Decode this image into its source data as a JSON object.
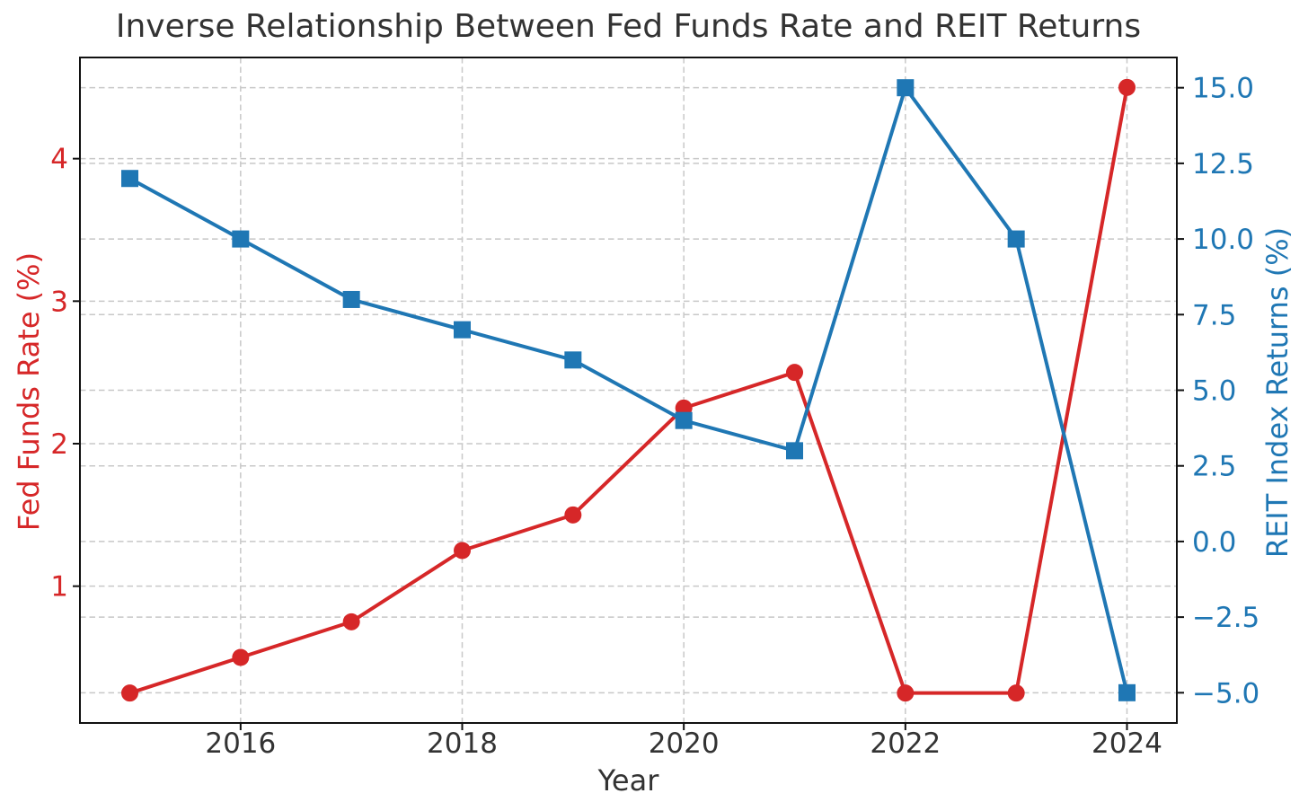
{
  "chart_data": {
    "type": "line",
    "title": "Inverse Relationship Between Fed Funds Rate and REIT Returns",
    "xlabel": "Year",
    "ylabel_left": "Fed Funds Rate (%)",
    "ylabel_right": "REIT Index Returns (%)",
    "x": [
      2015,
      2016,
      2017,
      2018,
      2019,
      2020,
      2021,
      2022,
      2023,
      2024
    ],
    "series": [
      {
        "name": "Fed Funds Rate (%)",
        "axis": "left",
        "color": "#d62728",
        "marker": "circle",
        "values": [
          0.25,
          0.5,
          0.75,
          1.25,
          1.5,
          2.25,
          2.5,
          0.25,
          0.25,
          4.5
        ]
      },
      {
        "name": "REIT Index Returns (%)",
        "axis": "right",
        "color": "#1f77b4",
        "marker": "square",
        "values": [
          12.0,
          10.0,
          8.0,
          7.0,
          6.0,
          4.0,
          3.0,
          15.0,
          10.0,
          -5.0
        ]
      }
    ],
    "xlim": [
      2014.55,
      2024.45
    ],
    "ylim_left": [
      0.04,
      4.71
    ],
    "ylim_right": [
      -6,
      16
    ],
    "x_ticks": [
      2016,
      2018,
      2020,
      2022,
      2024
    ],
    "x_tick_labels": [
      "2016",
      "2018",
      "2020",
      "2022",
      "2024"
    ],
    "left_ticks": [
      1,
      2,
      3,
      4
    ],
    "left_tick_labels": [
      "1",
      "2",
      "3",
      "4"
    ],
    "right_ticks": [
      -5,
      -2.5,
      0,
      2.5,
      5,
      7.5,
      10,
      12.5,
      15
    ],
    "right_tick_labels": [
      "−5.0",
      "−2.5",
      "0.0",
      "2.5",
      "5.0",
      "7.5",
      "10.0",
      "12.5",
      "15.0"
    ],
    "grid": true,
    "legend": "none"
  },
  "colors": {
    "fed_line": "#d62728",
    "reit_line": "#1f77b4",
    "grid": "#c8c8c8",
    "spine": "#111111",
    "text": "#333333"
  }
}
